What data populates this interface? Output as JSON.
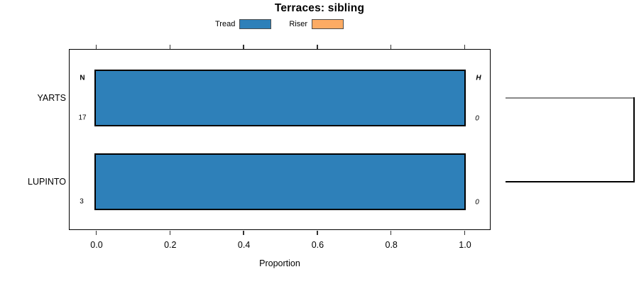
{
  "title": "Terraces: sibling",
  "legend": {
    "items": [
      {
        "label": "Tread",
        "color": "#2e80b9"
      },
      {
        "label": "Riser",
        "color": "#fcab64"
      }
    ]
  },
  "axis": {
    "label": "Proportion",
    "ticks": [
      {
        "value": 0.0,
        "label": "0.0"
      },
      {
        "value": 0.2,
        "label": "0.2"
      },
      {
        "value": 0.4,
        "label": "0.4"
      },
      {
        "value": 0.6,
        "label": "0.6"
      },
      {
        "value": 0.8,
        "label": "0.8"
      },
      {
        "value": 1.0,
        "label": "1.0"
      }
    ]
  },
  "column_headers": {
    "left": "N",
    "right": "H"
  },
  "rows": [
    {
      "category": "YARTS",
      "n": "17",
      "h": "0"
    },
    {
      "category": "LUPINTO",
      "n": "3",
      "h": "0"
    }
  ],
  "colors": {
    "tread": "#2e80b9",
    "riser": "#fcab64",
    "bar_border": "#000000",
    "dendro_top_branch": "#888888",
    "dendro_bottom_branch": "#000000"
  },
  "dendrogram": {
    "connects": [
      "YARTS",
      "LUPINTO"
    ],
    "branch_colors": [
      "#888888",
      "#000000"
    ]
  },
  "chart_data": {
    "type": "bar",
    "orientation": "horizontal",
    "stacked": true,
    "title": "Terraces: sibling",
    "xlabel": "Proportion",
    "ylabel": "",
    "xlim": [
      0,
      1
    ],
    "xticks": [
      0.0,
      0.2,
      0.4,
      0.6,
      0.8,
      1.0
    ],
    "grid": false,
    "legend_position": "top-center",
    "categories": [
      "YARTS",
      "LUPINTO"
    ],
    "series": [
      {
        "name": "Tread",
        "color": "#2e80b9",
        "values": [
          1.0,
          1.0
        ]
      },
      {
        "name": "Riser",
        "color": "#fcab64",
        "values": [
          0.0,
          0.0
        ]
      }
    ],
    "annotations": {
      "left_header": "N",
      "right_header": "H",
      "N": [
        17,
        3
      ],
      "H": [
        0,
        0
      ]
    },
    "extras": "right-side dendrogram bracket joins YARTS row (gray branch) and LUPINTO row (black branch)"
  }
}
